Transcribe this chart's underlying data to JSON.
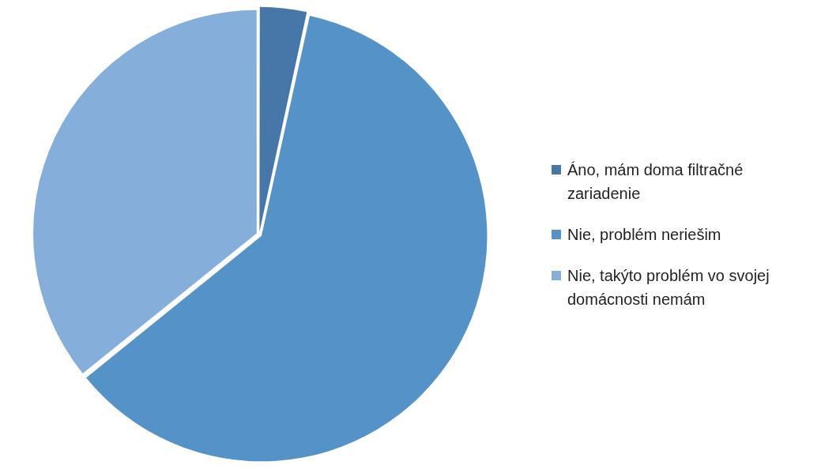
{
  "chart_data": {
    "type": "pie",
    "categories": [
      "Áno, mám doma filtračné zariadenie",
      "Nie, problém neriešim",
      "Nie, takýto problém vo svojej domácnosti nemám"
    ],
    "values": [
      3.4,
      60.8,
      35.8
    ],
    "colors": [
      "#4677a8",
      "#5592c8",
      "#85aedb"
    ],
    "legend": "right"
  }
}
